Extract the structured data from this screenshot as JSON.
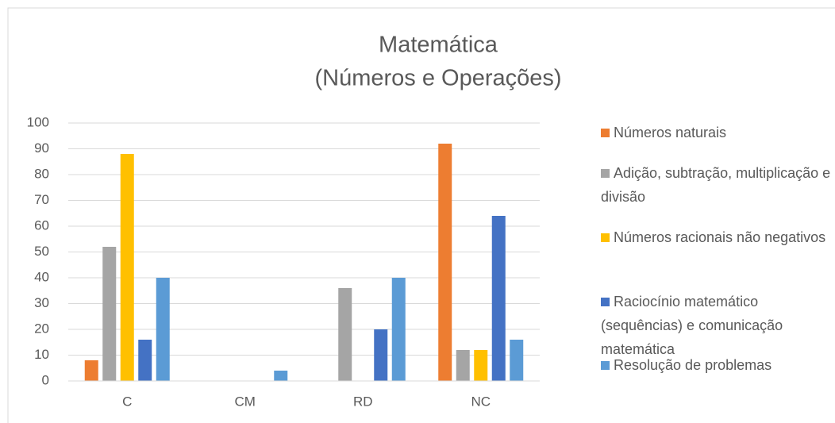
{
  "chart_data": {
    "type": "bar",
    "title": [
      "Matemática",
      "(Números e Operações)"
    ],
    "categories": [
      "C",
      "CM",
      "RD",
      "NC"
    ],
    "series": [
      {
        "name": "Números naturais",
        "color": "#ed7d31",
        "values": [
          8,
          0,
          0,
          92
        ]
      },
      {
        "name": "Adição, subtração, multiplicação e divisão",
        "color": "#a5a5a5",
        "values": [
          52,
          0,
          36,
          12
        ]
      },
      {
        "name": "Números racionais não negativos",
        "color": "#ffc000",
        "values": [
          88,
          0,
          0,
          12
        ]
      },
      {
        "name": "Raciocínio matemático (sequências) e comunicação matemática",
        "color": "#4472c4",
        "values": [
          16,
          0,
          20,
          64
        ]
      },
      {
        "name": "Resolução de problemas",
        "color": "#5b9bd5",
        "values": [
          40,
          4,
          40,
          16
        ]
      }
    ],
    "ylim": [
      0,
      100
    ],
    "yticks": [
      0,
      10,
      20,
      30,
      40,
      50,
      60,
      70,
      80,
      90,
      100
    ],
    "grid": true,
    "legend": "right"
  }
}
